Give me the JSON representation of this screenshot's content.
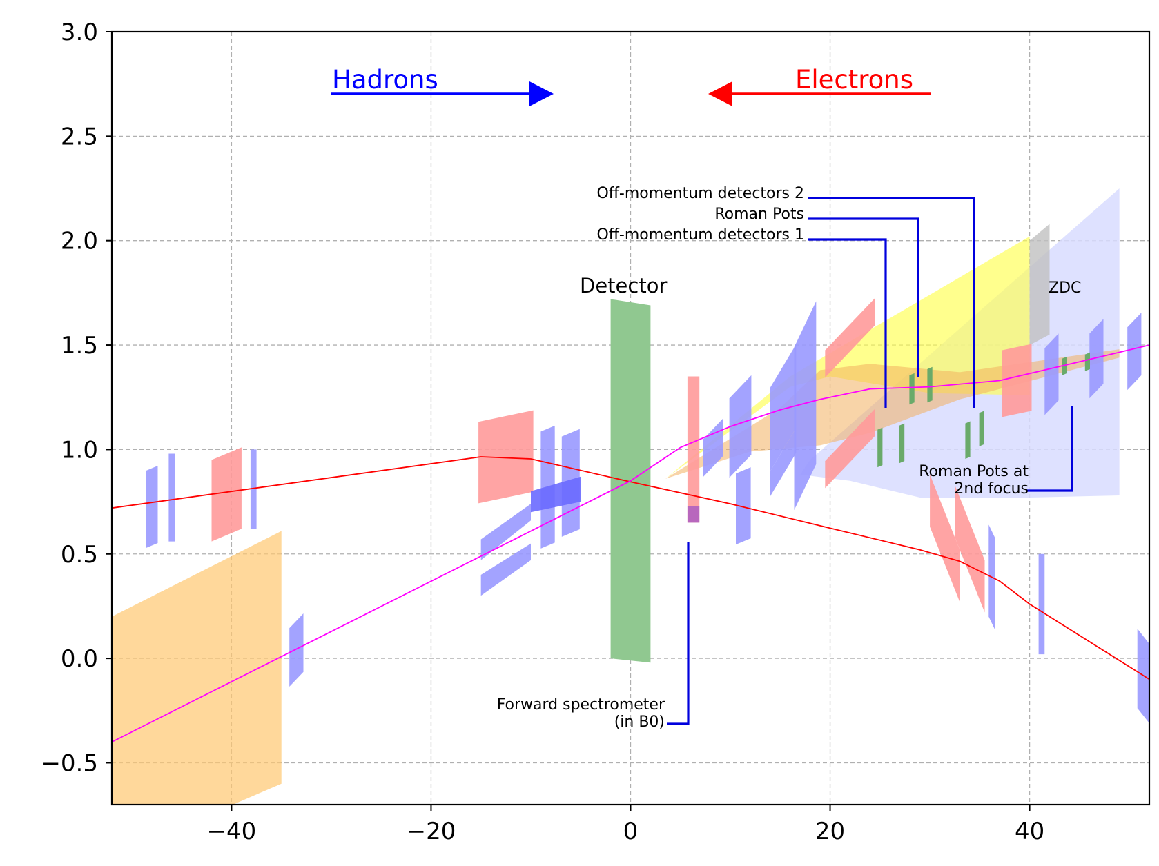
{
  "chart_data": {
    "type": "diagram-plot",
    "title": "",
    "xlabel": "",
    "ylabel": "",
    "xlim": [
      -52,
      52
    ],
    "ylim": [
      -0.7,
      3.0
    ],
    "x_ticks": [
      -40,
      -20,
      0,
      20,
      40
    ],
    "x_tick_labels": [
      "−40",
      "−20",
      "0",
      "20",
      "40"
    ],
    "y_ticks": [
      -0.5,
      0.0,
      0.5,
      1.0,
      1.5,
      2.0,
      2.5,
      3.0
    ],
    "y_tick_labels": [
      "−0.5",
      "0.0",
      "0.5",
      "1.0",
      "1.5",
      "2.0",
      "2.5",
      "3.0"
    ],
    "grid": true,
    "colors": {
      "hadron": "#0000ff",
      "electron": "#ff0000",
      "magenta": "#ff00ff",
      "magnet_red": "#ff9a9a",
      "magnet_blue": "#9999ff",
      "detector": "#90c890",
      "orange": "#ffc870",
      "yellow": "#ffff50",
      "lavender": "#d8dcff",
      "zdc": "#c0c0c0",
      "station": "#6aaa6a",
      "leader": "#0000dd"
    },
    "series": [
      {
        "name": "electron beam line",
        "x": [
          -52,
          -15,
          -10,
          0,
          10,
          19,
          29,
          33,
          37,
          40,
          52
        ],
        "y": [
          0.72,
          0.965,
          0.955,
          0.845,
          0.74,
          0.635,
          0.52,
          0.465,
          0.37,
          0.26,
          -0.1
        ]
      },
      {
        "name": "hadron beam line",
        "x": [
          -52,
          0,
          5,
          10,
          15,
          19,
          24,
          30,
          37,
          45,
          52
        ],
        "y": [
          -0.4,
          0.85,
          1.01,
          1.11,
          1.19,
          1.24,
          1.29,
          1.3,
          1.33,
          1.42,
          1.5
        ]
      }
    ],
    "annotations": {
      "hadrons": "Hadrons",
      "electrons": "Electrons",
      "detector": "Detector",
      "zdc": "ZDC",
      "off_momentum_2": "Off-momentum detectors 2",
      "roman_pots": "Roman Pots",
      "off_momentum_1": "Off-momentum detectors 1",
      "roman_pots_2nd_line1": "Roman Pots at",
      "roman_pots_2nd_line2": "2nd focus",
      "forward_spec_line1": "Forward spectrometer",
      "forward_spec_line2": "(in B0)"
    }
  }
}
